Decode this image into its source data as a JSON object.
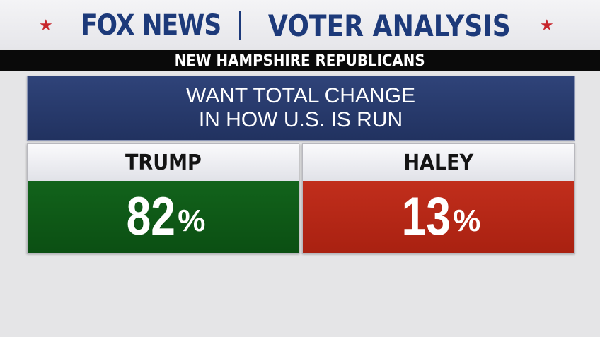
{
  "header": {
    "brand": "FOX NEWS",
    "title": "VOTER ANALYSIS",
    "star_color": "#c8262c",
    "brand_color": "#1d3a7a"
  },
  "subheader": "NEW HAMPSHIRE REPUBLICANS",
  "question": {
    "line1": "WANT TOTAL CHANGE",
    "line2": "IN HOW U.S. IS RUN"
  },
  "chart_data": {
    "type": "table",
    "categories": [
      "TRUMP",
      "HALEY"
    ],
    "values": [
      82,
      13
    ],
    "unit": "%",
    "colors": [
      "#12631b",
      "#c12e1c"
    ]
  },
  "results": [
    {
      "name": "TRUMP",
      "value": "82",
      "unit": "%"
    },
    {
      "name": "HALEY",
      "value": "13",
      "unit": "%"
    }
  ]
}
